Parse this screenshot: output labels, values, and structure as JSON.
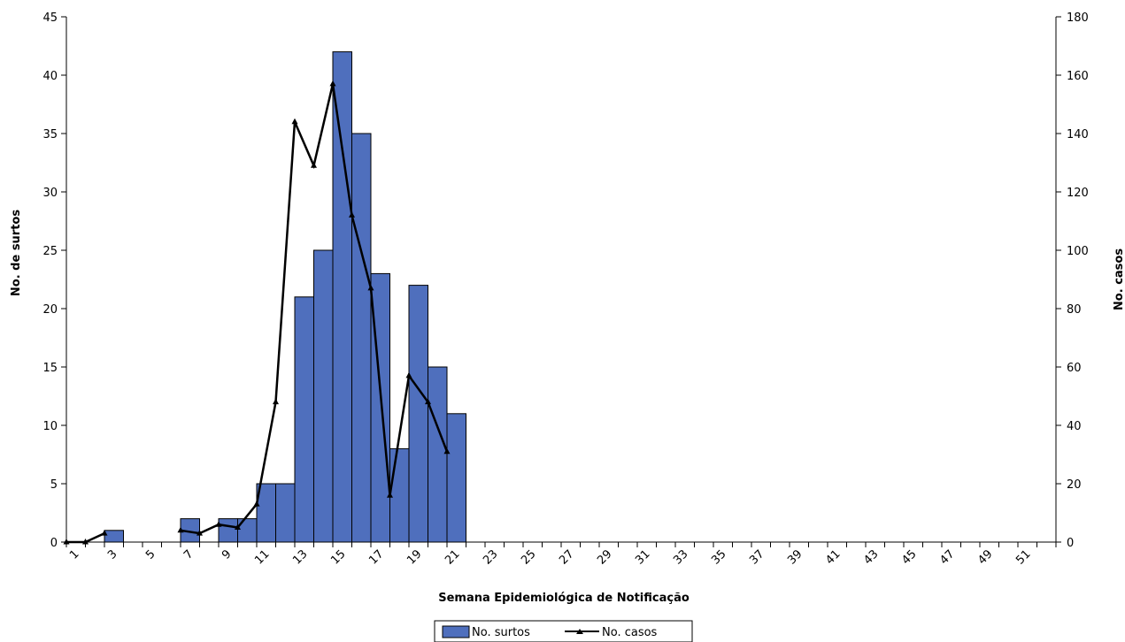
{
  "chart_data": {
    "type": "bar+line",
    "xlabel": "Semana Epidemiológica de Notificação",
    "ylabel_left": "No. de surtos",
    "ylabel_right": "No. casos",
    "categories": [
      1,
      2,
      3,
      4,
      5,
      6,
      7,
      8,
      9,
      10,
      11,
      12,
      13,
      14,
      15,
      16,
      17,
      18,
      19,
      20,
      21,
      22,
      23,
      24,
      25,
      26,
      27,
      28,
      29,
      30,
      31,
      32,
      33,
      34,
      35,
      36,
      37,
      38,
      39,
      40,
      41,
      42,
      43,
      44,
      45,
      46,
      47,
      48,
      49,
      50,
      51,
      52
    ],
    "x_tick_labels": [
      "1",
      "3",
      "5",
      "7",
      "9",
      "11",
      "13",
      "15",
      "17",
      "19",
      "21",
      "23",
      "25",
      "27",
      "29",
      "31",
      "33",
      "35",
      "37",
      "39",
      "41",
      "43",
      "45",
      "47",
      "49",
      "51"
    ],
    "ylim_left": [
      0,
      45
    ],
    "yticks_left": [
      0,
      5,
      10,
      15,
      20,
      25,
      30,
      35,
      40,
      45
    ],
    "ylim_right": [
      0,
      180
    ],
    "yticks_right": [
      0,
      20,
      40,
      60,
      80,
      100,
      120,
      140,
      160,
      180
    ],
    "series": [
      {
        "name": "No. surtos",
        "kind": "bar",
        "axis": "left",
        "color": "#4f6fbd",
        "values": [
          0,
          0,
          1,
          0,
          0,
          0,
          2,
          0,
          2,
          2,
          5,
          5,
          21,
          25,
          42,
          35,
          23,
          8,
          22,
          15,
          11,
          0,
          0,
          0,
          0,
          0,
          0,
          0,
          0,
          0,
          0,
          0,
          0,
          0,
          0,
          0,
          0,
          0,
          0,
          0,
          0,
          0,
          0,
          0,
          0,
          0,
          0,
          0,
          0,
          0,
          0,
          0
        ]
      },
      {
        "name": "No. casos",
        "kind": "line",
        "axis": "right",
        "color": "#000000",
        "values": [
          0,
          0,
          3,
          null,
          null,
          null,
          4,
          3,
          6,
          5,
          13,
          48,
          144,
          129,
          157,
          112,
          87,
          16,
          57,
          48,
          31,
          null,
          null,
          null,
          null,
          null,
          null,
          null,
          null,
          null,
          null,
          null,
          null,
          null,
          null,
          null,
          null,
          null,
          null,
          null,
          null,
          null,
          null,
          null,
          null,
          null,
          null,
          null,
          null,
          null,
          null,
          null
        ]
      }
    ],
    "legend_position": "bottom-center",
    "grid": false
  },
  "legend": {
    "bars_label": "No. surtos",
    "line_label": "No. casos"
  }
}
